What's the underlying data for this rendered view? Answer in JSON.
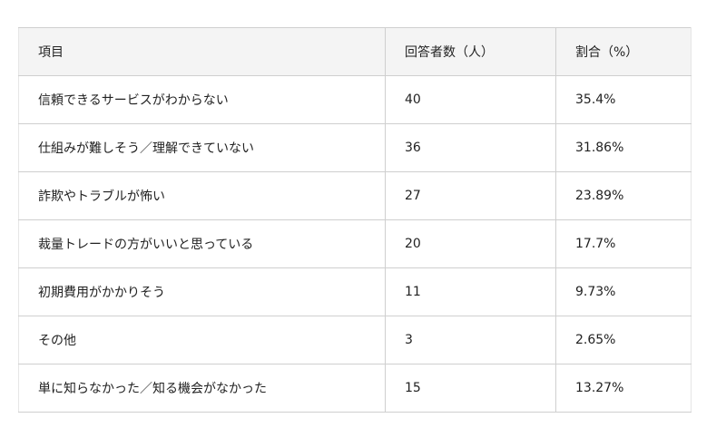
{
  "table": {
    "headers": [
      "項目",
      "回答者数（人）",
      "割合（%）"
    ],
    "rows": [
      [
        "信頼できるサービスがわからない",
        "40",
        "35.4%"
      ],
      [
        "仕組みが難しそう／理解できていない",
        "36",
        "31.86%"
      ],
      [
        "詐欺やトラブルが怖い",
        "27",
        "23.89%"
      ],
      [
        "裁量トレードの方がいいと思っている",
        "20",
        "17.7%"
      ],
      [
        "初期費用がかかりそう",
        "11",
        "9.73%"
      ],
      [
        "その他",
        "3",
        "2.65%"
      ],
      [
        "単に知らなかった／知る機会がなかった",
        "15",
        "13.27%"
      ]
    ]
  }
}
